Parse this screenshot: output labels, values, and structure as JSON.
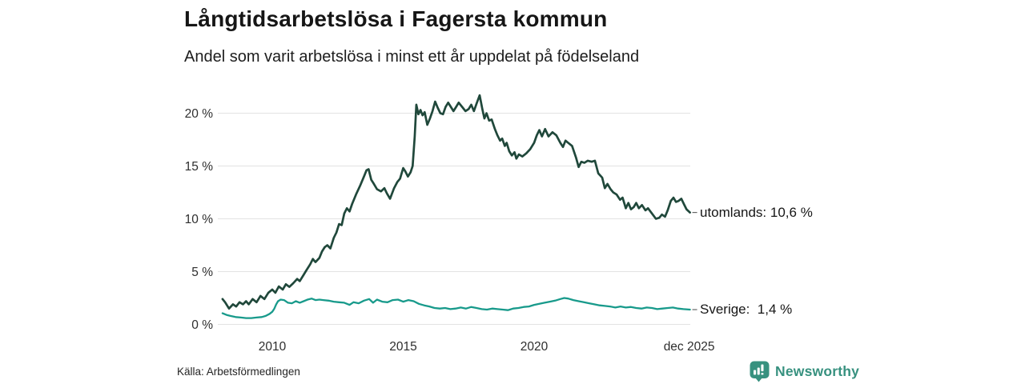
{
  "header": {
    "title": "Långtidsarbetslösa i Fagersta kommun",
    "subtitle": "Andel som varit arbetslösa i minst ett år uppdelat på födelseland"
  },
  "footer": {
    "source": "Källa: Arbetsförmedlingen",
    "brand": "Newsworthy",
    "brand_color": "#37917f",
    "brand_icon": "newsworthy-speech-bubble-barchart-icon"
  },
  "chart_data": {
    "type": "line",
    "title": "Långtidsarbetslösa i Fagersta kommun",
    "subtitle": "Andel som varit arbetslösa i minst ett år uppdelat på födelseland",
    "xlabel": "",
    "ylabel": "",
    "xlim": [
      2008.1,
      2025.95
    ],
    "ylim": [
      0,
      22.5
    ],
    "grid": true,
    "grid_color": "#e3e3e3",
    "legend_position": "right-end-labels",
    "yticks": [
      {
        "value": 0,
        "label": "0 %"
      },
      {
        "value": 5,
        "label": "5 %"
      },
      {
        "value": 10,
        "label": "10 %"
      },
      {
        "value": 15,
        "label": "15 %"
      },
      {
        "value": 20,
        "label": "20 %"
      }
    ],
    "xticks": [
      {
        "value": 2010,
        "label": "2010"
      },
      {
        "value": 2015,
        "label": "2015"
      },
      {
        "value": 2020,
        "label": "2020"
      },
      {
        "value": 2025.92,
        "label": "dec 2025"
      }
    ],
    "series": [
      {
        "name": "utomlands",
        "color": "#20483b",
        "width": 2.7,
        "end_value": "10,6 %",
        "end_label": "utomlands: 10,6 %",
        "points": [
          [
            2008.1,
            2.4
          ],
          [
            2008.2,
            2.1
          ],
          [
            2008.35,
            1.5
          ],
          [
            2008.5,
            1.9
          ],
          [
            2008.62,
            1.7
          ],
          [
            2008.75,
            2.1
          ],
          [
            2008.88,
            1.9
          ],
          [
            2009.0,
            2.2
          ],
          [
            2009.1,
            1.9
          ],
          [
            2009.25,
            2.4
          ],
          [
            2009.4,
            2.1
          ],
          [
            2009.55,
            2.7
          ],
          [
            2009.7,
            2.4
          ],
          [
            2009.85,
            3.0
          ],
          [
            2010.0,
            3.3
          ],
          [
            2010.12,
            3.0
          ],
          [
            2010.25,
            3.6
          ],
          [
            2010.4,
            3.3
          ],
          [
            2010.52,
            3.8
          ],
          [
            2010.65,
            3.55
          ],
          [
            2010.8,
            3.9
          ],
          [
            2010.95,
            4.3
          ],
          [
            2011.05,
            4.1
          ],
          [
            2011.2,
            4.7
          ],
          [
            2011.32,
            5.2
          ],
          [
            2011.45,
            5.7
          ],
          [
            2011.55,
            6.2
          ],
          [
            2011.65,
            5.9
          ],
          [
            2011.8,
            6.3
          ],
          [
            2011.9,
            6.9
          ],
          [
            2012.0,
            7.3
          ],
          [
            2012.1,
            7.5
          ],
          [
            2012.22,
            7.2
          ],
          [
            2012.35,
            8.2
          ],
          [
            2012.45,
            8.7
          ],
          [
            2012.55,
            9.5
          ],
          [
            2012.65,
            9.4
          ],
          [
            2012.75,
            10.5
          ],
          [
            2012.85,
            11.0
          ],
          [
            2012.95,
            10.7
          ],
          [
            2013.05,
            11.4
          ],
          [
            2013.2,
            12.3
          ],
          [
            2013.35,
            13.1
          ],
          [
            2013.5,
            14.0
          ],
          [
            2013.6,
            14.6
          ],
          [
            2013.68,
            14.7
          ],
          [
            2013.78,
            13.7
          ],
          [
            2013.88,
            13.3
          ],
          [
            2014.0,
            12.8
          ],
          [
            2014.15,
            12.6
          ],
          [
            2014.28,
            12.9
          ],
          [
            2014.38,
            12.4
          ],
          [
            2014.5,
            11.9
          ],
          [
            2014.65,
            12.9
          ],
          [
            2014.78,
            13.5
          ],
          [
            2014.88,
            13.8
          ],
          [
            2015.0,
            14.8
          ],
          [
            2015.08,
            14.5
          ],
          [
            2015.18,
            14.0
          ],
          [
            2015.28,
            14.4
          ],
          [
            2015.36,
            15.0
          ],
          [
            2015.44,
            17.8
          ],
          [
            2015.5,
            20.8
          ],
          [
            2015.58,
            19.9
          ],
          [
            2015.66,
            20.3
          ],
          [
            2015.74,
            19.8
          ],
          [
            2015.82,
            20.1
          ],
          [
            2015.92,
            18.9
          ],
          [
            2016.02,
            19.5
          ],
          [
            2016.12,
            20.2
          ],
          [
            2016.22,
            21.1
          ],
          [
            2016.32,
            20.5
          ],
          [
            2016.42,
            20.0
          ],
          [
            2016.52,
            19.9
          ],
          [
            2016.62,
            20.6
          ],
          [
            2016.72,
            21.0
          ],
          [
            2016.82,
            20.6
          ],
          [
            2016.92,
            20.2
          ],
          [
            2017.02,
            20.6
          ],
          [
            2017.12,
            21.0
          ],
          [
            2017.25,
            20.6
          ],
          [
            2017.38,
            20.2
          ],
          [
            2017.5,
            20.4
          ],
          [
            2017.6,
            20.8
          ],
          [
            2017.7,
            20.2
          ],
          [
            2017.8,
            20.9
          ],
          [
            2017.92,
            21.7
          ],
          [
            2018.02,
            20.4
          ],
          [
            2018.1,
            19.5
          ],
          [
            2018.18,
            20.0
          ],
          [
            2018.28,
            19.3
          ],
          [
            2018.38,
            19.4
          ],
          [
            2018.5,
            18.5
          ],
          [
            2018.6,
            17.9
          ],
          [
            2018.7,
            17.4
          ],
          [
            2018.78,
            17.6
          ],
          [
            2018.88,
            16.9
          ],
          [
            2018.95,
            17.2
          ],
          [
            2019.05,
            16.4
          ],
          [
            2019.15,
            16.0
          ],
          [
            2019.25,
            16.3
          ],
          [
            2019.32,
            15.7
          ],
          [
            2019.42,
            16.1
          ],
          [
            2019.55,
            15.9
          ],
          [
            2019.7,
            16.2
          ],
          [
            2019.85,
            16.6
          ],
          [
            2020.0,
            17.2
          ],
          [
            2020.1,
            17.9
          ],
          [
            2020.2,
            18.4
          ],
          [
            2020.3,
            17.8
          ],
          [
            2020.42,
            18.5
          ],
          [
            2020.55,
            17.8
          ],
          [
            2020.7,
            18.2
          ],
          [
            2020.85,
            17.9
          ],
          [
            2021.0,
            17.2
          ],
          [
            2021.1,
            16.8
          ],
          [
            2021.2,
            17.4
          ],
          [
            2021.3,
            17.2
          ],
          [
            2021.45,
            16.9
          ],
          [
            2021.6,
            15.8
          ],
          [
            2021.7,
            14.9
          ],
          [
            2021.8,
            15.4
          ],
          [
            2021.92,
            15.3
          ],
          [
            2022.05,
            15.5
          ],
          [
            2022.2,
            15.4
          ],
          [
            2022.32,
            15.5
          ],
          [
            2022.45,
            14.3
          ],
          [
            2022.6,
            13.9
          ],
          [
            2022.7,
            12.9
          ],
          [
            2022.8,
            13.3
          ],
          [
            2022.92,
            12.8
          ],
          [
            2023.02,
            12.5
          ],
          [
            2023.15,
            12.3
          ],
          [
            2023.28,
            11.8
          ],
          [
            2023.38,
            12.0
          ],
          [
            2023.5,
            11.0
          ],
          [
            2023.6,
            11.5
          ],
          [
            2023.7,
            10.9
          ],
          [
            2023.8,
            11.1
          ],
          [
            2023.9,
            11.5
          ],
          [
            2024.0,
            11.0
          ],
          [
            2024.12,
            11.3
          ],
          [
            2024.25,
            10.8
          ],
          [
            2024.35,
            11.0
          ],
          [
            2024.5,
            10.5
          ],
          [
            2024.65,
            10.0
          ],
          [
            2024.78,
            10.1
          ],
          [
            2024.88,
            10.4
          ],
          [
            2025.0,
            10.2
          ],
          [
            2025.1,
            10.8
          ],
          [
            2025.22,
            11.7
          ],
          [
            2025.32,
            12.0
          ],
          [
            2025.42,
            11.6
          ],
          [
            2025.52,
            11.7
          ],
          [
            2025.62,
            11.9
          ],
          [
            2025.72,
            11.4
          ],
          [
            2025.82,
            10.9
          ],
          [
            2025.95,
            10.6
          ]
        ]
      },
      {
        "name": "Sverige",
        "color": "#189a8b",
        "width": 2.3,
        "end_value": "1,4 %",
        "end_label": "Sverige:  1,4 %",
        "points": [
          [
            2008.1,
            1.05
          ],
          [
            2008.25,
            0.9
          ],
          [
            2008.4,
            0.8
          ],
          [
            2008.6,
            0.7
          ],
          [
            2008.8,
            0.65
          ],
          [
            2009.0,
            0.6
          ],
          [
            2009.2,
            0.6
          ],
          [
            2009.4,
            0.65
          ],
          [
            2009.6,
            0.7
          ],
          [
            2009.75,
            0.8
          ],
          [
            2009.9,
            1.0
          ],
          [
            2010.0,
            1.2
          ],
          [
            2010.08,
            1.5
          ],
          [
            2010.15,
            1.9
          ],
          [
            2010.22,
            2.2
          ],
          [
            2010.32,
            2.35
          ],
          [
            2010.45,
            2.3
          ],
          [
            2010.6,
            2.05
          ],
          [
            2010.75,
            2.0
          ],
          [
            2010.9,
            2.2
          ],
          [
            2011.05,
            2.05
          ],
          [
            2011.2,
            2.2
          ],
          [
            2011.35,
            2.35
          ],
          [
            2011.5,
            2.45
          ],
          [
            2011.65,
            2.3
          ],
          [
            2011.8,
            2.35
          ],
          [
            2011.95,
            2.3
          ],
          [
            2012.15,
            2.25
          ],
          [
            2012.35,
            2.15
          ],
          [
            2012.55,
            2.1
          ],
          [
            2012.75,
            2.05
          ],
          [
            2012.95,
            1.85
          ],
          [
            2013.1,
            2.1
          ],
          [
            2013.3,
            2.0
          ],
          [
            2013.5,
            2.25
          ],
          [
            2013.7,
            2.4
          ],
          [
            2013.85,
            2.05
          ],
          [
            2014.0,
            2.35
          ],
          [
            2014.2,
            2.15
          ],
          [
            2014.4,
            2.1
          ],
          [
            2014.6,
            2.3
          ],
          [
            2014.8,
            2.35
          ],
          [
            2015.0,
            2.15
          ],
          [
            2015.2,
            2.3
          ],
          [
            2015.4,
            2.2
          ],
          [
            2015.6,
            1.95
          ],
          [
            2015.8,
            1.8
          ],
          [
            2016.0,
            1.7
          ],
          [
            2016.2,
            1.55
          ],
          [
            2016.4,
            1.5
          ],
          [
            2016.6,
            1.55
          ],
          [
            2016.8,
            1.45
          ],
          [
            2017.0,
            1.5
          ],
          [
            2017.2,
            1.6
          ],
          [
            2017.4,
            1.5
          ],
          [
            2017.6,
            1.65
          ],
          [
            2017.8,
            1.55
          ],
          [
            2018.0,
            1.45
          ],
          [
            2018.2,
            1.4
          ],
          [
            2018.4,
            1.5
          ],
          [
            2018.6,
            1.45
          ],
          [
            2018.8,
            1.4
          ],
          [
            2019.0,
            1.35
          ],
          [
            2019.2,
            1.5
          ],
          [
            2019.4,
            1.55
          ],
          [
            2019.6,
            1.65
          ],
          [
            2019.8,
            1.7
          ],
          [
            2020.0,
            1.85
          ],
          [
            2020.2,
            1.95
          ],
          [
            2020.4,
            2.05
          ],
          [
            2020.6,
            2.15
          ],
          [
            2020.8,
            2.25
          ],
          [
            2021.0,
            2.4
          ],
          [
            2021.15,
            2.5
          ],
          [
            2021.3,
            2.45
          ],
          [
            2021.5,
            2.3
          ],
          [
            2021.7,
            2.2
          ],
          [
            2021.9,
            2.1
          ],
          [
            2022.1,
            2.0
          ],
          [
            2022.3,
            1.9
          ],
          [
            2022.5,
            1.8
          ],
          [
            2022.7,
            1.75
          ],
          [
            2022.9,
            1.7
          ],
          [
            2023.1,
            1.6
          ],
          [
            2023.3,
            1.7
          ],
          [
            2023.5,
            1.6
          ],
          [
            2023.7,
            1.65
          ],
          [
            2023.9,
            1.55
          ],
          [
            2024.1,
            1.5
          ],
          [
            2024.3,
            1.6
          ],
          [
            2024.5,
            1.55
          ],
          [
            2024.7,
            1.45
          ],
          [
            2024.9,
            1.5
          ],
          [
            2025.1,
            1.55
          ],
          [
            2025.3,
            1.6
          ],
          [
            2025.5,
            1.5
          ],
          [
            2025.7,
            1.45
          ],
          [
            2025.95,
            1.4
          ]
        ]
      }
    ]
  }
}
